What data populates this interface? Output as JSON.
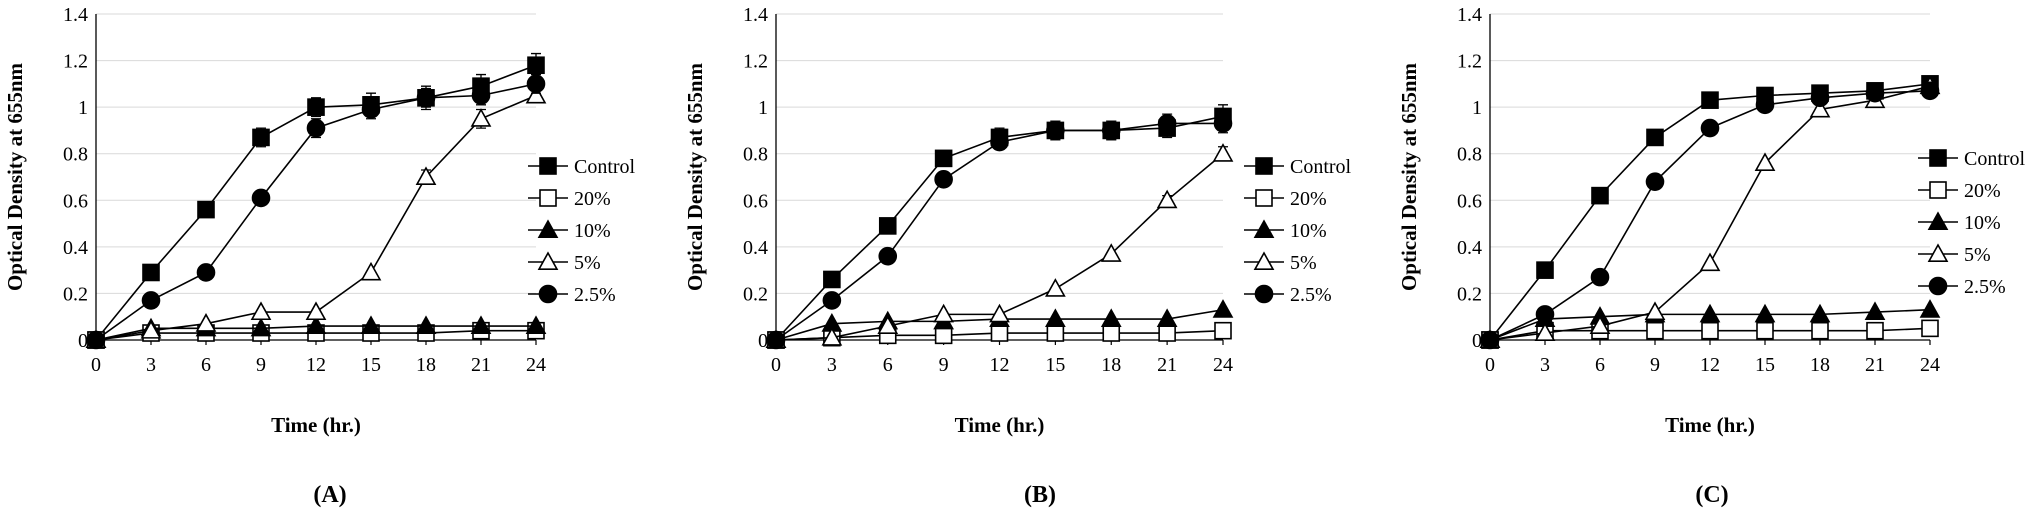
{
  "chart_data": [
    {
      "type": "line",
      "panel_label": "(A)",
      "xlabel": "Time (hr.)",
      "ylabel": "Optical Density at 655nm",
      "x": [
        0,
        3,
        6,
        9,
        12,
        15,
        18,
        21,
        24
      ],
      "xlim": [
        0,
        24
      ],
      "ylim": [
        0,
        1.4
      ],
      "x_ticks": [
        "0",
        "3",
        "6",
        "9",
        "12",
        "15",
        "18",
        "21",
        "24"
      ],
      "y_ticks": [
        "0",
        "0.2",
        "0.4",
        "0.6",
        "0.8",
        "1",
        "1.2",
        "1.4"
      ],
      "grid": true,
      "legend_position": "right",
      "series": [
        {
          "name": "Control",
          "marker": "square-filled",
          "values": [
            0,
            0.29,
            0.56,
            0.87,
            1.0,
            1.01,
            1.04,
            1.09,
            1.18
          ],
          "errors": [
            0,
            0.01,
            0.01,
            0.04,
            0.04,
            0.05,
            0.05,
            0.05,
            0.05
          ]
        },
        {
          "name": "20%",
          "marker": "square-open",
          "values": [
            0,
            0.03,
            0.03,
            0.03,
            0.03,
            0.03,
            0.03,
            0.04,
            0.04
          ],
          "errors": [
            0,
            0,
            0,
            0,
            0,
            0,
            0,
            0,
            0
          ]
        },
        {
          "name": "10%",
          "marker": "triangle-filled",
          "values": [
            0,
            0.05,
            0.05,
            0.05,
            0.06,
            0.06,
            0.06,
            0.06,
            0.06
          ],
          "errors": [
            0,
            0,
            0,
            0,
            0,
            0,
            0,
            0,
            0
          ]
        },
        {
          "name": "5%",
          "marker": "triangle-open",
          "values": [
            0,
            0.04,
            0.07,
            0.12,
            0.12,
            0.29,
            0.7,
            0.95,
            1.05
          ],
          "errors": [
            0,
            0,
            0,
            0,
            0,
            0,
            0.03,
            0.04,
            0.03
          ]
        },
        {
          "name": "2.5%",
          "marker": "circle-filled",
          "values": [
            0,
            0.17,
            0.29,
            0.61,
            0.91,
            0.99,
            1.04,
            1.05,
            1.1
          ],
          "errors": [
            0,
            0.01,
            0.01,
            0.02,
            0.04,
            0.04,
            0.04,
            0.04,
            0.04
          ]
        }
      ]
    },
    {
      "type": "line",
      "panel_label": "(B)",
      "xlabel": "Time (hr.)",
      "ylabel": "Optical Density at 655nm",
      "x": [
        0,
        3,
        6,
        9,
        12,
        15,
        18,
        21,
        24
      ],
      "xlim": [
        0,
        24
      ],
      "ylim": [
        0,
        1.4
      ],
      "x_ticks": [
        "0",
        "3",
        "6",
        "9",
        "12",
        "15",
        "18",
        "21",
        "24"
      ],
      "y_ticks": [
        "0",
        "0.2",
        "0.4",
        "0.6",
        "0.8",
        "1",
        "1.2",
        "1.4"
      ],
      "grid": true,
      "legend_position": "right",
      "series": [
        {
          "name": "Control",
          "marker": "square-filled",
          "values": [
            0,
            0.26,
            0.49,
            0.78,
            0.87,
            0.9,
            0.9,
            0.91,
            0.96
          ],
          "errors": [
            0,
            0.01,
            0.01,
            0.02,
            0.04,
            0.04,
            0.04,
            0.04,
            0.05
          ]
        },
        {
          "name": "20%",
          "marker": "square-open",
          "values": [
            0,
            0.01,
            0.02,
            0.02,
            0.03,
            0.03,
            0.03,
            0.03,
            0.04
          ],
          "errors": [
            0,
            0,
            0,
            0,
            0,
            0,
            0,
            0,
            0
          ]
        },
        {
          "name": "10%",
          "marker": "triangle-filled",
          "values": [
            0,
            0.07,
            0.08,
            0.08,
            0.09,
            0.09,
            0.09,
            0.09,
            0.13
          ],
          "errors": [
            0,
            0,
            0,
            0,
            0,
            0,
            0,
            0,
            0
          ]
        },
        {
          "name": "5%",
          "marker": "triangle-open",
          "values": [
            0,
            0.01,
            0.06,
            0.11,
            0.11,
            0.22,
            0.37,
            0.6,
            0.8
          ],
          "errors": [
            0,
            0,
            0,
            0,
            0,
            0,
            0,
            0.02,
            0.03
          ]
        },
        {
          "name": "2.5%",
          "marker": "circle-filled",
          "values": [
            0,
            0.17,
            0.36,
            0.69,
            0.85,
            0.9,
            0.9,
            0.93,
            0.93
          ],
          "errors": [
            0,
            0.01,
            0.01,
            0.02,
            0.03,
            0.04,
            0.04,
            0.04,
            0.04
          ]
        }
      ]
    },
    {
      "type": "line",
      "panel_label": "(C)",
      "xlabel": "Time (hr.)",
      "ylabel": "Optical Density at 655nm",
      "x": [
        0,
        3,
        6,
        9,
        12,
        15,
        18,
        21,
        24
      ],
      "xlim": [
        0,
        24
      ],
      "ylim": [
        0,
        1.4
      ],
      "x_ticks": [
        "0",
        "3",
        "6",
        "9",
        "12",
        "15",
        "18",
        "21",
        "24"
      ],
      "y_ticks": [
        "0",
        "0.2",
        "0.4",
        "0.6",
        "0.8",
        "1",
        "1.2",
        "1.4"
      ],
      "grid": true,
      "legend_position": "right",
      "series": [
        {
          "name": "Control",
          "marker": "square-filled",
          "values": [
            0,
            0.3,
            0.62,
            0.87,
            1.03,
            1.05,
            1.06,
            1.07,
            1.1
          ],
          "errors": [
            0,
            0.01,
            0.01,
            0.01,
            0.01,
            0.01,
            0.01,
            0.01,
            0.01
          ]
        },
        {
          "name": "20%",
          "marker": "square-open",
          "values": [
            0,
            0.04,
            0.04,
            0.04,
            0.04,
            0.04,
            0.04,
            0.04,
            0.05
          ],
          "errors": [
            0,
            0,
            0,
            0,
            0,
            0,
            0,
            0,
            0
          ]
        },
        {
          "name": "10%",
          "marker": "triangle-filled",
          "values": [
            0,
            0.09,
            0.1,
            0.11,
            0.11,
            0.11,
            0.11,
            0.12,
            0.13
          ],
          "errors": [
            0,
            0,
            0,
            0,
            0,
            0,
            0,
            0,
            0
          ]
        },
        {
          "name": "5%",
          "marker": "triangle-open",
          "values": [
            0,
            0.03,
            0.06,
            0.12,
            0.33,
            0.76,
            0.99,
            1.03,
            1.09
          ],
          "errors": [
            0,
            0,
            0,
            0,
            0,
            0,
            0,
            0,
            0
          ]
        },
        {
          "name": "2.5%",
          "marker": "circle-filled",
          "values": [
            0,
            0.11,
            0.27,
            0.68,
            0.91,
            1.01,
            1.04,
            1.06,
            1.07
          ],
          "errors": [
            0,
            0,
            0,
            0,
            0,
            0,
            0,
            0,
            0
          ]
        }
      ]
    }
  ]
}
